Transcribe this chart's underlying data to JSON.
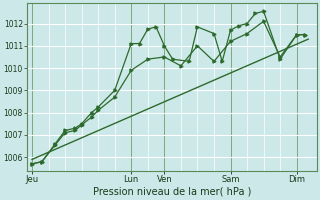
{
  "background_color": "#cce8e8",
  "grid_color": "#ffffff",
  "line_color": "#2d6a2d",
  "dark_line_color": "#1a4a1a",
  "xlabel": "Pression niveau de la mer( hPa )",
  "ylim": [
    1005.4,
    1012.9
  ],
  "yticks": [
    1006,
    1007,
    1008,
    1009,
    1010,
    1011,
    1012
  ],
  "xlim": [
    -0.15,
    8.6
  ],
  "day_labels": [
    "Jeu",
    "Lun",
    "Ven",
    "Sam",
    "Dim"
  ],
  "day_positions": [
    0,
    3,
    4,
    6,
    8
  ],
  "minor_x_positions": [
    0.5,
    1.0,
    1.5,
    2.0,
    2.5,
    3.5,
    4.5,
    5.0,
    5.5,
    6.5,
    7.0,
    7.5
  ],
  "series1_x": [
    0,
    0.3,
    0.7,
    1.0,
    1.3,
    1.5,
    1.8,
    2.0,
    2.5,
    3.0,
    3.25,
    3.5,
    3.75,
    4.0,
    4.25,
    4.75,
    5.0,
    5.5,
    5.75,
    6.0,
    6.25,
    6.5,
    6.75,
    7.0,
    7.5,
    8.0,
    8.25
  ],
  "series1_y": [
    1005.7,
    1005.8,
    1006.6,
    1007.2,
    1007.3,
    1007.5,
    1008.0,
    1008.25,
    1009.0,
    1011.1,
    1011.1,
    1011.75,
    1011.85,
    1011.0,
    1010.4,
    1010.3,
    1011.85,
    1011.55,
    1010.3,
    1011.7,
    1011.9,
    1012.0,
    1012.45,
    1012.55,
    1010.4,
    1011.5,
    1011.5
  ],
  "series2_x": [
    0,
    0.3,
    0.7,
    1.0,
    1.3,
    1.5,
    1.8,
    2.0,
    2.5,
    3.0,
    3.5,
    4.0,
    4.5,
    5.0,
    5.5,
    6.0,
    6.5,
    7.0,
    7.5,
    8.0,
    8.25
  ],
  "series2_y": [
    1005.7,
    1005.8,
    1006.55,
    1007.1,
    1007.2,
    1007.45,
    1007.8,
    1008.1,
    1008.7,
    1009.9,
    1010.4,
    1010.5,
    1010.1,
    1011.0,
    1010.3,
    1011.2,
    1011.55,
    1012.1,
    1010.5,
    1011.5,
    1011.5
  ],
  "trend_x": [
    0,
    8.35
  ],
  "trend_y": [
    1005.9,
    1011.3
  ]
}
